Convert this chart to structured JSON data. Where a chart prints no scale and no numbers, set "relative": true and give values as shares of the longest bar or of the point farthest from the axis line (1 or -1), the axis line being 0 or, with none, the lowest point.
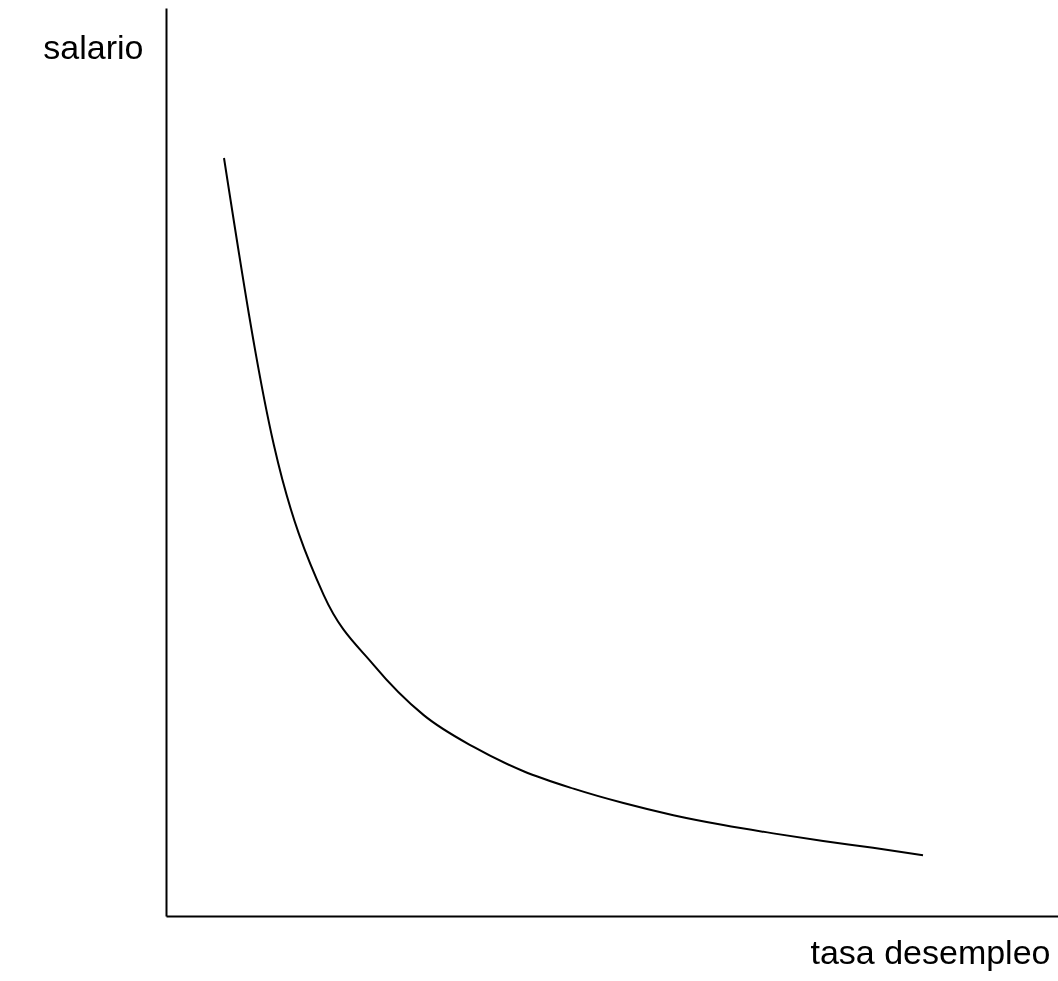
{
  "chart_data": {
    "type": "line",
    "relative": true,
    "xlabel": "tasa desempleo",
    "ylabel": "salario",
    "categories": [
      null,
      null,
      null,
      null,
      null,
      null,
      null,
      null,
      null,
      null,
      null,
      null,
      null,
      null,
      null
    ],
    "series": [
      {
        "color": "#000000",
        "values": [
          1.0,
          0.621,
          0.423,
          0.331,
          0.265,
          0.223,
          0.191,
          0.168,
          0.149,
          0.133,
          0.12,
          0.109,
          0.099,
          0.09,
          0.08
        ]
      }
    ]
  }
}
